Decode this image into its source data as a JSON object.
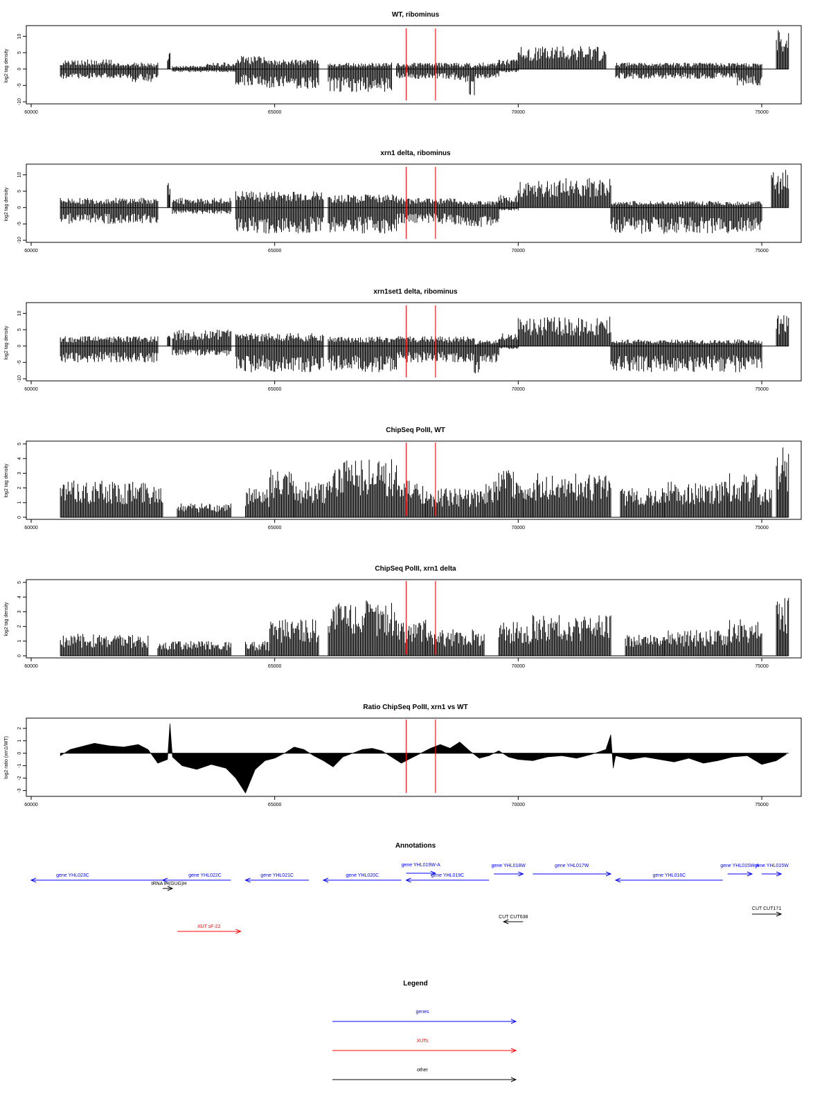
{
  "chart_data": [
    {
      "type": "bar",
      "title": "WT, ribominus",
      "ylabel": "log2 tag density",
      "xlim": [
        60000,
        76000
      ],
      "ylim": [
        -10,
        12
      ],
      "xticks": [
        60000,
        65000,
        70000,
        75000
      ],
      "yticks": [
        -10,
        -5,
        0,
        5,
        10
      ],
      "markers": [
        67700,
        68300
      ],
      "series": [
        {
          "values": [
            [
              60600,
              61700,
              0,
              -3,
              3
            ],
            [
              61700,
              62000,
              0,
              -3,
              2
            ],
            [
              62000,
              62600,
              0,
              -4,
              2
            ],
            [
              62800,
              62850,
              0,
              0,
              6
            ],
            [
              62900,
              63600,
              0,
              -1,
              1
            ],
            [
              63600,
              64200,
              0,
              -1,
              2
            ],
            [
              64200,
              64800,
              0,
              -5,
              4
            ],
            [
              64800,
              65900,
              0,
              -6,
              3
            ],
            [
              66100,
              67400,
              0,
              -7,
              2
            ],
            [
              67500,
              68700,
              0,
              -3,
              2
            ],
            [
              68700,
              69000,
              0,
              -4,
              2
            ],
            [
              69000,
              69100,
              0,
              -8,
              1
            ],
            [
              69100,
              69600,
              0,
              -3,
              2
            ],
            [
              69600,
              70000,
              0,
              -1,
              3
            ],
            [
              70000,
              71800,
              0,
              0,
              7
            ],
            [
              72000,
              74500,
              0,
              -3,
              2
            ],
            [
              74500,
              75000,
              0,
              -5,
              2
            ],
            [
              75300,
              75550,
              0,
              0,
              12
            ]
          ]
        },
        {
          "values": [
            [
              60000,
              76000,
              0,
              0,
              0
            ]
          ]
        }
      ]
    },
    {
      "type": "bar",
      "title": "xrn1 delta, ribominus",
      "ylabel": "log2 tag density",
      "xlim": [
        60000,
        76000
      ],
      "ylim": [
        -10,
        12
      ],
      "xticks": [
        60000,
        65000,
        70000,
        75000
      ],
      "yticks": [
        -10,
        -5,
        0,
        5,
        10
      ],
      "markers": [
        67700,
        68300
      ],
      "series": [
        {
          "values": [
            [
              60600,
              62600,
              0,
              -5,
              3
            ],
            [
              62800,
              62850,
              0,
              0,
              9
            ],
            [
              62900,
              64100,
              0,
              -2,
              3
            ],
            [
              64200,
              66000,
              0,
              -8,
              5
            ],
            [
              66100,
              67500,
              0,
              -8,
              4
            ],
            [
              67500,
              68700,
              0,
              -5,
              3
            ],
            [
              68700,
              69600,
              0,
              -6,
              2
            ],
            [
              69600,
              70000,
              0,
              -1,
              4
            ],
            [
              70000,
              71900,
              0,
              0,
              9
            ],
            [
              71900,
              75000,
              0,
              -8,
              2
            ],
            [
              75200,
              75550,
              0,
              0,
              12
            ]
          ]
        }
      ]
    },
    {
      "type": "bar",
      "title": "xrn1set1 delta, ribominus",
      "ylabel": "log2 tag density",
      "xlim": [
        60000,
        76000
      ],
      "ylim": [
        -10,
        12
      ],
      "xticks": [
        60000,
        65000,
        70000,
        75000
      ],
      "yticks": [
        -10,
        -5,
        0,
        5,
        10
      ],
      "markers": [
        67700,
        68300
      ],
      "series": [
        {
          "values": [
            [
              60600,
              62600,
              0,
              -5,
              3
            ],
            [
              62800,
              62850,
              0,
              0,
              4
            ],
            [
              62900,
              64100,
              0,
              -3,
              5
            ],
            [
              64200,
              66000,
              0,
              -8,
              4
            ],
            [
              66100,
              67500,
              0,
              -8,
              3
            ],
            [
              67500,
              69100,
              0,
              -5,
              3
            ],
            [
              69100,
              69200,
              0,
              -10,
              1
            ],
            [
              69200,
              69600,
              0,
              -5,
              2
            ],
            [
              69600,
              70000,
              0,
              -1,
              4
            ],
            [
              70000,
              71900,
              0,
              0,
              9
            ],
            [
              71900,
              75000,
              0,
              -8,
              2
            ],
            [
              75300,
              75550,
              0,
              0,
              10
            ]
          ]
        }
      ]
    },
    {
      "type": "bar",
      "title": "ChipSeq PolII, WT",
      "ylabel": "log2 tag density",
      "xlim": [
        60000,
        76000
      ],
      "ylim": [
        0,
        5
      ],
      "xticks": [
        60000,
        65000,
        70000,
        75000
      ],
      "yticks": [
        0,
        1,
        2,
        3,
        4,
        5
      ],
      "markers": [
        67700,
        68300
      ],
      "series": [
        {
          "values": [
            [
              60600,
              62700,
              0,
              1,
              2.5
            ],
            [
              63000,
              64100,
              0,
              1,
              1
            ],
            [
              64400,
              64900,
              0,
              1,
              2
            ],
            [
              64900,
              65400,
              0,
              1,
              3.3
            ],
            [
              65400,
              66100,
              0,
              1,
              2.5
            ],
            [
              66100,
              67500,
              0,
              3,
              4
            ],
            [
              67500,
              68100,
              0,
              1,
              2.5
            ],
            [
              68100,
              69300,
              0,
              1,
              2
            ],
            [
              69300,
              69600,
              0,
              1,
              2.5
            ],
            [
              69600,
              70100,
              0,
              1,
              3.5
            ],
            [
              70100,
              70300,
              0,
              1,
              2
            ],
            [
              70300,
              71900,
              0,
              1,
              3
            ],
            [
              72100,
              73000,
              0,
              1,
              2
            ],
            [
              73000,
              74300,
              0,
              1,
              2.5
            ],
            [
              74300,
              74900,
              0,
              1,
              3
            ],
            [
              74900,
              75200,
              0,
              1,
              2
            ],
            [
              75300,
              75550,
              0,
              0,
              5
            ]
          ]
        }
      ]
    },
    {
      "type": "bar",
      "title": "ChipSeq PolII, xrn1 delta",
      "ylabel": "log2 tag density",
      "xlim": [
        60000,
        76000
      ],
      "ylim": [
        0,
        5
      ],
      "xticks": [
        60000,
        65000,
        70000,
        75000
      ],
      "yticks": [
        0,
        1,
        2,
        3,
        4,
        5
      ],
      "markers": [
        67700,
        68300
      ],
      "series": [
        {
          "values": [
            [
              60600,
              62400,
              0,
              0.5,
              1.5
            ],
            [
              62600,
              64100,
              0,
              0.5,
              1
            ],
            [
              64400,
              64900,
              0,
              0.5,
              1
            ],
            [
              64900,
              65900,
              0,
              1,
              2.5
            ],
            [
              66100,
              67500,
              0,
              3,
              3.8
            ],
            [
              67500,
              68100,
              0,
              1,
              2.5
            ],
            [
              68100,
              69300,
              0,
              1,
              1.8
            ],
            [
              69600,
              70300,
              0,
              1,
              2.3
            ],
            [
              70300,
              71900,
              0,
              1.5,
              2.8
            ],
            [
              72200,
              73000,
              0,
              0.5,
              1.5
            ],
            [
              73000,
              74300,
              0,
              1,
              1.8
            ],
            [
              74300,
              75000,
              0,
              1,
              2.5
            ],
            [
              75300,
              75550,
              0,
              0,
              4.3
            ]
          ]
        }
      ]
    },
    {
      "type": "area",
      "title": "Ratio ChipSeq PolII, xrn1 vs WT",
      "ylabel": "log2 ratio (xrn1/WT)",
      "xlim": [
        60000,
        76000
      ],
      "ylim": [
        -3.3,
        2.6
      ],
      "xticks": [
        60000,
        65000,
        70000,
        75000
      ],
      "yticks": [
        -3,
        -2,
        -1,
        0,
        1,
        2
      ],
      "markers": [
        67700,
        68300
      ],
      "x": [
        60600,
        60800,
        61000,
        61300,
        61600,
        61900,
        62200,
        62400,
        62600,
        62800,
        62850,
        62900,
        63100,
        63400,
        63700,
        64000,
        64200,
        64400,
        64600,
        64800,
        65000,
        65200,
        65400,
        65600,
        65800,
        66000,
        66200,
        66400,
        66600,
        66800,
        67000,
        67200,
        67400,
        67600,
        67800,
        68000,
        68200,
        68400,
        68600,
        68800,
        69000,
        69200,
        69400,
        69600,
        69800,
        70000,
        70300,
        70600,
        70900,
        71200,
        71500,
        71800,
        71900,
        71950,
        72000,
        72300,
        72600,
        72900,
        73200,
        73500,
        73800,
        74100,
        74400,
        74700,
        75000,
        75300,
        75500
      ],
      "y": [
        -0.2,
        0.3,
        0.5,
        0.8,
        0.6,
        0.5,
        0.7,
        0.3,
        -0.8,
        -0.5,
        2.4,
        -0.3,
        -1.0,
        -1.3,
        -0.9,
        -1.2,
        -2.0,
        -3.2,
        -1.3,
        -0.6,
        -0.4,
        0.0,
        0.5,
        0.3,
        -0.2,
        -0.6,
        -1.1,
        -0.3,
        0.0,
        0.3,
        0.4,
        0.2,
        -0.3,
        -0.8,
        -0.4,
        0.0,
        0.4,
        0.7,
        0.4,
        0.9,
        0.2,
        -0.4,
        -0.2,
        0.2,
        -0.3,
        -0.5,
        -0.6,
        -0.3,
        -0.2,
        -0.4,
        -0.1,
        0.3,
        1.5,
        -1.2,
        -0.2,
        -0.5,
        -0.3,
        -0.5,
        -0.7,
        -0.4,
        -0.8,
        -0.6,
        -0.3,
        -0.2,
        -0.9,
        -0.6,
        -0.1
      ]
    }
  ],
  "annotations_panel": {
    "title": "Annotations",
    "items": [
      {
        "label": "gene YHL023C",
        "color": "#0000ff",
        "direction": "left",
        "start": 60000,
        "end": 62800,
        "row": 0
      },
      {
        "label": "tRNA tH(GUG)H",
        "color": "#000000",
        "direction": "right",
        "start": 62700,
        "end": 62900,
        "row": 1
      },
      {
        "label": "gene YHL022C",
        "color": "#0000ff",
        "direction": "left",
        "start": 62700,
        "end": 64100,
        "row": 0
      },
      {
        "label": "gene YHL021C",
        "color": "#0000ff",
        "direction": "left",
        "start": 64400,
        "end": 65700,
        "row": 0
      },
      {
        "label": "gene YHL020C",
        "color": "#0000ff",
        "direction": "left",
        "start": 66000,
        "end": 67600,
        "row": 0
      },
      {
        "label": "gene YHL019W-A",
        "color": "#0000ff",
        "direction": "right",
        "start": 67700,
        "end": 68300,
        "row": 2
      },
      {
        "label": "gene YHL019C",
        "color": "#0000ff",
        "direction": "left",
        "start": 67700,
        "end": 69400,
        "row": 0
      },
      {
        "label": "gene YHL018W",
        "color": "#0000ff",
        "direction": "right",
        "start": 69500,
        "end": 70100,
        "row": 3
      },
      {
        "label": "gene YHL017W",
        "color": "#0000ff",
        "direction": "right",
        "start": 70300,
        "end": 71900,
        "row": 3
      },
      {
        "label": "gene YHL016C",
        "color": "#0000ff",
        "direction": "left",
        "start": 72000,
        "end": 74200,
        "row": 0
      },
      {
        "label": "gene YHL015W-A",
        "color": "#0000ff",
        "direction": "right",
        "start": 74300,
        "end": 74800,
        "row": 3
      },
      {
        "label": "gene YHL015W",
        "color": "#0000ff",
        "direction": "right",
        "start": 75000,
        "end": 75400,
        "row": 3
      },
      {
        "label": "CUT CUT638",
        "color": "#000000",
        "direction": "left",
        "start": 69700,
        "end": 70100,
        "row": 4
      },
      {
        "label": "CUT CUT171",
        "color": "#000000",
        "direction": "right",
        "start": 74800,
        "end": 75400,
        "row": 5
      },
      {
        "label": "XUT sF-22",
        "color": "#ff0000",
        "direction": "right",
        "start": 63000,
        "end": 64300,
        "row": 6
      }
    ]
  },
  "legend_panel": {
    "title": "Legend",
    "items": [
      {
        "label": "genes",
        "color": "#0000ff"
      },
      {
        "label": "XUTs",
        "color": "#ff0000"
      },
      {
        "label": "other",
        "color": "#000000"
      }
    ]
  }
}
